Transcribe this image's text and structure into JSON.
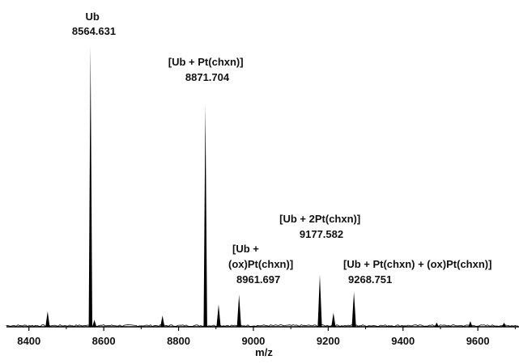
{
  "chart_data": {
    "type": "line",
    "xlabel": "m/z",
    "ylabel": "",
    "xlim": [
      8340,
      9710
    ],
    "ylim": [
      0,
      100
    ],
    "grid": false,
    "xticks": [
      8400,
      8600,
      8800,
      9000,
      9200,
      9400,
      9600
    ],
    "series": [
      {
        "values": [
          {
            "x": 8450,
            "y": 5.5
          },
          {
            "x": 8564.631,
            "y": 100
          },
          {
            "x": 8575,
            "y": 2.5
          },
          {
            "x": 8757,
            "y": 4.0
          },
          {
            "x": 8871.704,
            "y": 79
          },
          {
            "x": 8907,
            "y": 8.0
          },
          {
            "x": 8961.697,
            "y": 11.5
          },
          {
            "x": 9177.582,
            "y": 18.5
          },
          {
            "x": 9214,
            "y": 5.0
          },
          {
            "x": 9268.751,
            "y": 12.5
          },
          {
            "x": 9490,
            "y": 1.5
          },
          {
            "x": 9580,
            "y": 2.0
          },
          {
            "x": 9670,
            "y": 1.5
          }
        ]
      }
    ],
    "annotations": [
      {
        "id": "ub",
        "lines": [
          "Ub",
          "8564.631"
        ],
        "x": 8564.631
      },
      {
        "id": "ub-pt",
        "lines": [
          "[Ub + Pt(chxn)]",
          "8871.704"
        ],
        "x": 8871.704
      },
      {
        "id": "ub-ox",
        "lines": [
          "[Ub +",
          "(ox)Pt(chxn)]",
          "8961.697"
        ],
        "x": 8961.697
      },
      {
        "id": "ub-2pt",
        "lines": [
          "[Ub + 2Pt(chxn)]",
          "9177.582"
        ],
        "x": 9177.582
      },
      {
        "id": "ub-pt-ox",
        "lines": [
          "[Ub + Pt(chxn) + (ox)Pt(chxn)]",
          "9268.751"
        ],
        "x": 9268.751
      }
    ]
  }
}
